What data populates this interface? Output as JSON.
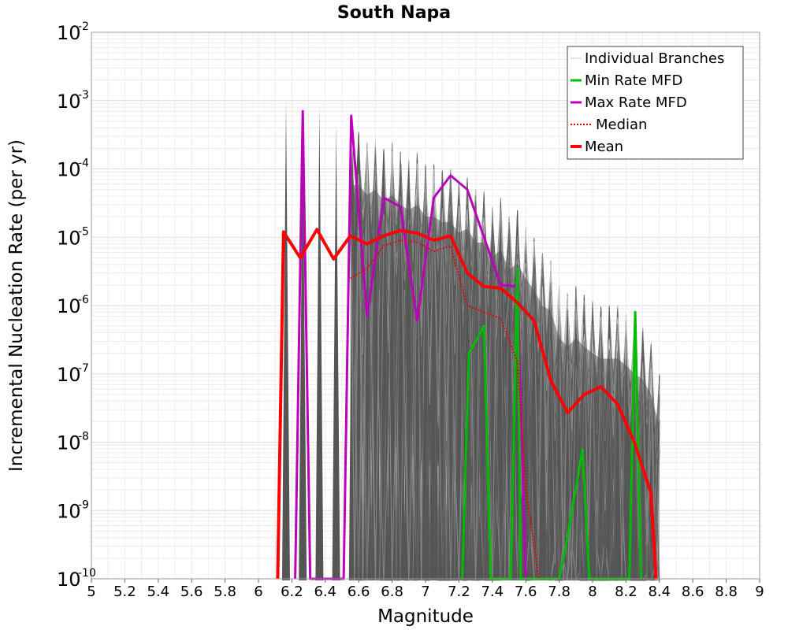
{
  "chart_data": {
    "type": "line",
    "title": "South Napa",
    "xlabel": "Magnitude",
    "ylabel": "Incremental Nucleation Rate (per yr)",
    "xlim": [
      5,
      9
    ],
    "ylim": [
      1e-10,
      0.01
    ],
    "yscale": "log",
    "grid": true,
    "legend_position": "top-right",
    "x_ticks": [
      "5",
      "5.2",
      "5.4",
      "5.6",
      "5.8",
      "6",
      "6.2",
      "6.4",
      "6.6",
      "6.8",
      "7",
      "7.2",
      "7.4",
      "7.6",
      "7.8",
      "8",
      "8.2",
      "8.4",
      "8.6",
      "8.8",
      "9"
    ],
    "y_ticks": [
      {
        "base": "10",
        "exp": "-2"
      },
      {
        "base": "10",
        "exp": "-3"
      },
      {
        "base": "10",
        "exp": "-4"
      },
      {
        "base": "10",
        "exp": "-5"
      },
      {
        "base": "10",
        "exp": "-6"
      },
      {
        "base": "10",
        "exp": "-7"
      },
      {
        "base": "10",
        "exp": "-8"
      },
      {
        "base": "10",
        "exp": "-9"
      },
      {
        "base": "10",
        "exp": "-10"
      }
    ],
    "legend": [
      {
        "label": "Individual Branches",
        "color": "#c8c8c8",
        "style": "solid",
        "width": 1
      },
      {
        "label": "Min Rate MFD",
        "color": "#00bb00",
        "style": "solid",
        "width": 3
      },
      {
        "label": "Max Rate MFD",
        "color": "#bb00bb",
        "style": "solid",
        "width": 3
      },
      {
        "label": "Median",
        "color": "#ee0000",
        "style": "dotted",
        "width": 2
      },
      {
        "label": "Mean",
        "color": "#ff0000",
        "style": "solid",
        "width": 4
      }
    ],
    "series": [
      {
        "name": "Mean",
        "color": "#ff0000",
        "points": [
          [
            6.115,
            1e-10
          ],
          [
            6.15,
            1.2e-05
          ],
          [
            6.25,
            5e-06
          ],
          [
            6.35,
            1.3e-05
          ],
          [
            6.45,
            4.8e-06
          ],
          [
            6.55,
            1.05e-05
          ],
          [
            6.65,
            8e-06
          ],
          [
            6.75,
            1.05e-05
          ],
          [
            6.85,
            1.25e-05
          ],
          [
            6.95,
            1.15e-05
          ],
          [
            7.05,
            9e-06
          ],
          [
            7.15,
            1.05e-05
          ],
          [
            7.25,
            3e-06
          ],
          [
            7.35,
            1.9e-06
          ],
          [
            7.45,
            1.8e-06
          ],
          [
            7.55,
            1.1e-06
          ],
          [
            7.65,
            6e-07
          ],
          [
            7.75,
            8e-08
          ],
          [
            7.85,
            2.7e-08
          ],
          [
            7.95,
            5e-08
          ],
          [
            8.05,
            6.5e-08
          ],
          [
            8.15,
            3.6e-08
          ],
          [
            8.25,
            1e-08
          ],
          [
            8.35,
            1.8e-09
          ],
          [
            8.38,
            1e-10
          ]
        ]
      },
      {
        "name": "Median",
        "color": "#ee0000",
        "points": [
          [
            6.55,
            2.5e-06
          ],
          [
            6.65,
            3.5e-06
          ],
          [
            6.75,
            7.5e-06
          ],
          [
            6.85,
            9e-06
          ],
          [
            6.95,
            8.5e-06
          ],
          [
            7.05,
            6.2e-06
          ],
          [
            7.15,
            7.5e-06
          ],
          [
            7.25,
            1e-06
          ],
          [
            7.35,
            8e-07
          ],
          [
            7.45,
            6.5e-07
          ],
          [
            7.55,
            1.5e-07
          ],
          [
            7.6,
            2e-09
          ],
          [
            7.68,
            1e-10
          ]
        ]
      },
      {
        "name": "Max Rate MFD",
        "color": "#bb00bb",
        "points": [
          [
            6.22,
            1e-10
          ],
          [
            6.265,
            0.0007
          ],
          [
            6.31,
            1e-10
          ],
          [
            6.51,
            1e-10
          ],
          [
            6.555,
            0.0006
          ],
          [
            6.65,
            7e-07
          ],
          [
            6.75,
            3.8e-05
          ],
          [
            6.85,
            2.8e-05
          ],
          [
            6.95,
            6e-07
          ],
          [
            7.05,
            3.8e-05
          ],
          [
            7.15,
            8e-05
          ],
          [
            7.25,
            5e-05
          ],
          [
            7.35,
            1e-05
          ],
          [
            7.45,
            2e-06
          ],
          [
            7.55,
            1.9e-06
          ],
          [
            7.6,
            1e-10
          ]
        ]
      },
      {
        "name": "Min Rate MFD",
        "color": "#00bb00",
        "points": [
          [
            7.22,
            1e-10
          ],
          [
            7.26,
            2e-07
          ],
          [
            7.35,
            5e-07
          ],
          [
            7.39,
            1e-10
          ],
          [
            7.51,
            1e-10
          ],
          [
            7.55,
            3.5e-06
          ],
          [
            7.57,
            1e-10
          ],
          [
            7.8,
            1e-10
          ],
          [
            7.84,
            3e-10
          ],
          [
            7.94,
            8e-09
          ],
          [
            7.98,
            1e-10
          ],
          [
            8.22,
            1e-10
          ],
          [
            8.255,
            8e-07
          ],
          [
            8.29,
            1e-10
          ]
        ]
      }
    ],
    "branches_envelope": {
      "color": "#555555",
      "light_color": "#c8c8c8",
      "spikes_early": [
        [
          6.165,
          0.001
        ],
        [
          6.265,
          0.0005
        ],
        [
          6.365,
          0.0008
        ],
        [
          6.465,
          0.00045
        ],
        [
          6.565,
          0.0005
        ]
      ],
      "upper": [
        [
          6.6,
          0.00035
        ],
        [
          6.65,
          0.00025
        ],
        [
          6.7,
          0.0003
        ],
        [
          6.75,
          0.0002
        ],
        [
          6.8,
          0.00025
        ],
        [
          6.85,
          0.00018
        ],
        [
          6.9,
          0.00015
        ],
        [
          6.95,
          0.00018
        ],
        [
          7.0,
          0.00012
        ],
        [
          7.05,
          0.00012
        ],
        [
          7.1,
          0.0001
        ],
        [
          7.15,
          0.0001
        ],
        [
          7.2,
          7e-05
        ],
        [
          7.25,
          8e-05
        ],
        [
          7.3,
          5e-05
        ],
        [
          7.35,
          5e-05
        ],
        [
          7.4,
          3e-05
        ],
        [
          7.45,
          4e-05
        ],
        [
          7.5,
          2e-05
        ],
        [
          7.55,
          2.5e-05
        ],
        [
          7.6,
          1.5e-05
        ],
        [
          7.65,
          1e-05
        ],
        [
          7.7,
          6e-06
        ],
        [
          7.75,
          5e-06
        ],
        [
          7.8,
          2e-06
        ],
        [
          7.85,
          1.5e-06
        ],
        [
          7.9,
          2e-06
        ],
        [
          7.95,
          1.5e-06
        ],
        [
          8.0,
          1.2e-06
        ],
        [
          8.05,
          1e-06
        ],
        [
          8.1,
          1e-06
        ],
        [
          8.15,
          1e-06
        ],
        [
          8.2,
          8e-07
        ],
        [
          8.25,
          6e-07
        ],
        [
          8.3,
          5e-07
        ],
        [
          8.35,
          3e-07
        ],
        [
          8.4,
          1e-07
        ]
      ],
      "spike_x": [
        6.6,
        6.65,
        6.7,
        6.75,
        6.8,
        6.85,
        6.9,
        6.95,
        7.0,
        7.05,
        7.1,
        7.15,
        7.2,
        7.25,
        7.3,
        7.35,
        7.4,
        7.45,
        7.5,
        7.55,
        7.6,
        7.65,
        7.7,
        7.75,
        7.8,
        7.85,
        7.9,
        7.95,
        8.0,
        8.05,
        8.1,
        8.15,
        8.2,
        8.25,
        8.3,
        8.35
      ]
    }
  }
}
